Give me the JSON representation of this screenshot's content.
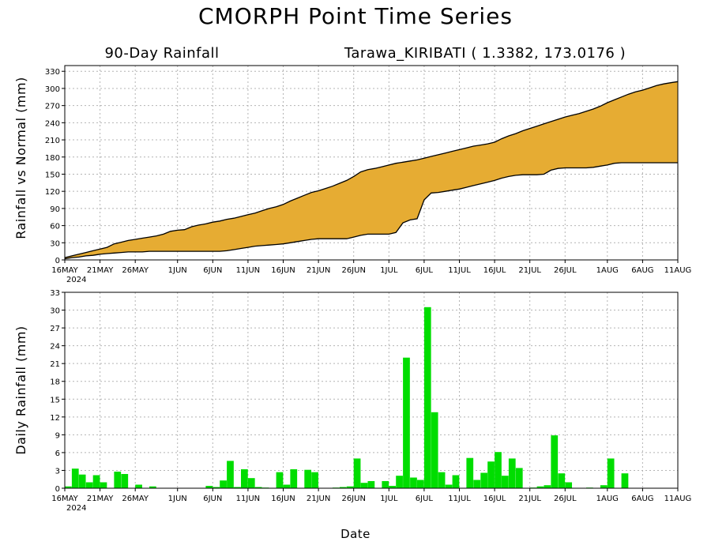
{
  "title": "CMORPH Point Time Series",
  "subtitle_left": "90-Day Rainfall",
  "subtitle_right": "Tarawa_KIRIBATI ( 1.3382, 173.0176 )",
  "xlabel": "Date",
  "year_label": "2024",
  "colors": {
    "accumulated_fill": "#e6ac33",
    "normal_fill": "#ffffff",
    "daily_bar": "#00dd00",
    "grid": "#b4b4b4"
  },
  "x_ticks": [
    {
      "label": "16MAY",
      "day": 0
    },
    {
      "label": "21MAY",
      "day": 5
    },
    {
      "label": "26MAY",
      "day": 10
    },
    {
      "label": "1JUN",
      "day": 16
    },
    {
      "label": "6JUN",
      "day": 21
    },
    {
      "label": "11JUN",
      "day": 26
    },
    {
      "label": "16JUN",
      "day": 31
    },
    {
      "label": "21JUN",
      "day": 36
    },
    {
      "label": "26JUN",
      "day": 41
    },
    {
      "label": "1JUL",
      "day": 46
    },
    {
      "label": "6JUL",
      "day": 51
    },
    {
      "label": "11JUL",
      "day": 56
    },
    {
      "label": "16JUL",
      "day": 61
    },
    {
      "label": "21JUL",
      "day": 66
    },
    {
      "label": "26JUL",
      "day": 71
    },
    {
      "label": "1AUG",
      "day": 77
    },
    {
      "label": "6AUG",
      "day": 82
    },
    {
      "label": "11AUG",
      "day": 87
    }
  ],
  "chart_data": [
    {
      "type": "area",
      "ylabel": "Rainfall vs Normal (mm)",
      "xlim": [
        0,
        87
      ],
      "ylim": [
        0,
        340
      ],
      "yticks": [
        0,
        30,
        60,
        90,
        120,
        150,
        180,
        210,
        240,
        270,
        300,
        330
      ],
      "grid": true,
      "x": [
        0,
        1,
        2,
        3,
        4,
        5,
        6,
        7,
        8,
        9,
        10,
        11,
        12,
        13,
        14,
        15,
        16,
        17,
        18,
        19,
        20,
        21,
        22,
        23,
        24,
        25,
        26,
        27,
        28,
        29,
        30,
        31,
        32,
        33,
        34,
        35,
        36,
        37,
        38,
        39,
        40,
        41,
        42,
        43,
        44,
        45,
        46,
        47,
        48,
        49,
        50,
        51,
        52,
        53,
        54,
        55,
        56,
        57,
        58,
        59,
        60,
        61,
        62,
        63,
        64,
        65,
        66,
        67,
        68,
        69,
        70,
        71,
        72,
        73,
        74,
        75,
        76,
        77,
        78,
        79,
        80,
        81,
        82,
        83,
        84,
        85,
        86,
        87
      ],
      "series": [
        {
          "name": "actual",
          "values": [
            4,
            7,
            10,
            13,
            16,
            19,
            22,
            28,
            31,
            34,
            36,
            38,
            40,
            42,
            45,
            50,
            52,
            53,
            58,
            61,
            63,
            66,
            68,
            71,
            73,
            76,
            79,
            82,
            86,
            90,
            93,
            97,
            103,
            108,
            113,
            118,
            121,
            125,
            129,
            134,
            139,
            146,
            154,
            158,
            160,
            163,
            166,
            169,
            171,
            173,
            175,
            178,
            181,
            184,
            187,
            190,
            193,
            196,
            199,
            201,
            203,
            206,
            212,
            217,
            221,
            226,
            230,
            234,
            238,
            242,
            246,
            250,
            253,
            256,
            260,
            264,
            269,
            275,
            280,
            285,
            290,
            294,
            297,
            301,
            305,
            308,
            310,
            312
          ]
        },
        {
          "name": "normal",
          "values": [
            2,
            4,
            5,
            7,
            8,
            10,
            11,
            12,
            13,
            14,
            14,
            14,
            15,
            15,
            15,
            15,
            15,
            15,
            15,
            15,
            15,
            15,
            15,
            16,
            18,
            20,
            22,
            24,
            25,
            26,
            27,
            28,
            30,
            32,
            34,
            36,
            37,
            37,
            37,
            37,
            37,
            40,
            43,
            45,
            45,
            45,
            45,
            48,
            65,
            70,
            72,
            105,
            117,
            118,
            120,
            122,
            124,
            127,
            130,
            133,
            136,
            139,
            143,
            146,
            148,
            149,
            149,
            149,
            150,
            157,
            160,
            161,
            161,
            161,
            161,
            162,
            164,
            166,
            169,
            170,
            170,
            170,
            170,
            170,
            170,
            170,
            170,
            170
          ]
        }
      ]
    },
    {
      "type": "bar",
      "ylabel": "Daily Rainfall (mm)",
      "xlim": [
        0,
        87
      ],
      "ylim": [
        0,
        33
      ],
      "yticks": [
        0,
        3,
        6,
        9,
        12,
        15,
        18,
        21,
        24,
        27,
        30,
        33
      ],
      "grid": true,
      "x": [
        0,
        1,
        2,
        3,
        4,
        5,
        6,
        7,
        8,
        9,
        10,
        11,
        12,
        13,
        14,
        15,
        16,
        17,
        18,
        19,
        20,
        21,
        22,
        23,
        24,
        25,
        26,
        27,
        28,
        29,
        30,
        31,
        32,
        33,
        34,
        35,
        36,
        37,
        38,
        39,
        40,
        41,
        42,
        43,
        44,
        45,
        46,
        47,
        48,
        49,
        50,
        51,
        52,
        53,
        54,
        55,
        56,
        57,
        58,
        59,
        60,
        61,
        62,
        63,
        64,
        65,
        66,
        67,
        68,
        69,
        70,
        71,
        72,
        73,
        74,
        75,
        76,
        77,
        78,
        79,
        80,
        81,
        82,
        83,
        84,
        85,
        86
      ],
      "series": [
        {
          "name": "daily",
          "values": [
            0.3,
            3.3,
            2.3,
            1.0,
            2.2,
            1.0,
            0,
            2.8,
            2.4,
            0,
            0.6,
            0,
            0.3,
            0,
            0,
            0,
            0,
            0,
            0,
            0,
            0.4,
            0.2,
            1.3,
            4.6,
            0.2,
            3.2,
            1.7,
            0.2,
            0.1,
            0,
            2.7,
            0.6,
            3.2,
            0,
            3.1,
            2.7,
            0,
            0,
            0.1,
            0.2,
            0.3,
            5.0,
            0.9,
            1.2,
            0,
            1.2,
            0.4,
            2.1,
            22.0,
            1.8,
            1.4,
            30.5,
            12.8,
            2.7,
            0.6,
            2.2,
            0,
            5.1,
            1.4,
            2.6,
            4.5,
            6.1,
            2.1,
            5.0,
            3.4,
            0,
            0.1,
            0.3,
            0.5,
            8.9,
            2.5,
            1.0,
            0,
            0,
            0.1,
            0,
            0.5,
            5.0,
            0,
            2.5,
            0,
            0,
            0,
            0,
            0,
            0,
            0
          ]
        }
      ]
    }
  ]
}
